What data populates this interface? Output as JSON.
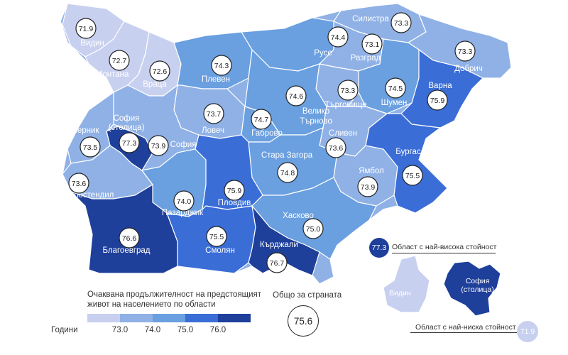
{
  "legend": {
    "title": "Очаквана продължителност на предстоящият живот на населението по области",
    "unit": "Години",
    "ticks": [
      "73.0",
      "74.0",
      "75.0",
      "76.0"
    ],
    "colors": [
      "#c8d0f0",
      "#8fb1e6",
      "#6a9fe0",
      "#3a6dd6",
      "#1e3f9a"
    ]
  },
  "national": {
    "label": "Общо за страната",
    "value": "75.6"
  },
  "regions": [
    {
      "name": "Видин",
      "value": "71.9",
      "color": "#c8d0f0"
    },
    {
      "name": "Монтана",
      "value": "72.7",
      "color": "#c8d0f0"
    },
    {
      "name": "Враца",
      "value": "72.6",
      "color": "#c8d0f0"
    },
    {
      "name": "Плевен",
      "value": "74.3",
      "color": "#6a9fe0"
    },
    {
      "name": "Русе",
      "value": "74.4",
      "color": "#6a9fe0"
    },
    {
      "name": "Силистра",
      "value": "73.3",
      "color": "#8fb1e6"
    },
    {
      "name": "Разград",
      "value": "73.1",
      "color": "#8fb1e6"
    },
    {
      "name": "Добрич",
      "value": "73.3",
      "color": "#8fb1e6"
    },
    {
      "name": "Търговище",
      "value": "73.3",
      "color": "#8fb1e6"
    },
    {
      "name": "Шумен",
      "value": "74.5",
      "color": "#6a9fe0"
    },
    {
      "name": "Варна",
      "value": "75.9",
      "color": "#3a6dd6"
    },
    {
      "name": "Ловеч",
      "value": "73.7",
      "color": "#8fb1e6"
    },
    {
      "name": "Велико Търново",
      "value": "74.6",
      "color": "#6a9fe0"
    },
    {
      "name": "Габрово",
      "value": "74.7",
      "color": "#6a9fe0"
    },
    {
      "name": "София (столица)",
      "value": "77.3",
      "color": "#1e3f9a"
    },
    {
      "name": "София",
      "value": "73.9",
      "color": "#8fb1e6"
    },
    {
      "name": "Перник",
      "value": "73.5",
      "color": "#8fb1e6"
    },
    {
      "name": "Кюстендил",
      "value": "73.6",
      "color": "#8fb1e6"
    },
    {
      "name": "Сливен",
      "value": "73.6",
      "color": "#8fb1e6"
    },
    {
      "name": "Стара Загора",
      "value": "74.8",
      "color": "#6a9fe0"
    },
    {
      "name": "Ямбол",
      "value": "73.9",
      "color": "#8fb1e6"
    },
    {
      "name": "Бургас",
      "value": "75.5",
      "color": "#3a6dd6"
    },
    {
      "name": "Пазарджик",
      "value": "74.0",
      "color": "#6a9fe0"
    },
    {
      "name": "Пловдив",
      "value": "75.9",
      "color": "#3a6dd6"
    },
    {
      "name": "Хасково",
      "value": "75.0",
      "color": "#6a9fe0"
    },
    {
      "name": "Благоевград",
      "value": "76.6",
      "color": "#1e3f9a"
    },
    {
      "name": "Смолян",
      "value": "75.5",
      "color": "#3a6dd6"
    },
    {
      "name": "Кърджали",
      "value": "76.7",
      "color": "#1e3f9a"
    }
  ],
  "inset": {
    "highest_label": "Област с най-висока стойност",
    "highest_value": "77.3",
    "highest_region": "София (столица)",
    "lowest_label": "Област с най-ниска стойност",
    "lowest_value": "71.9",
    "lowest_region": "Видин"
  }
}
